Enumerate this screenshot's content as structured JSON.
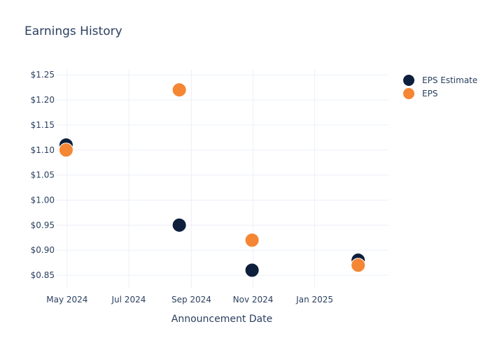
{
  "chart_data": {
    "type": "scatter",
    "title": "Earnings History",
    "xlabel": "Announcement Date",
    "ylabel": "",
    "x_ticks": [
      {
        "date": "2024-05-01",
        "label": "May 2024"
      },
      {
        "date": "2024-07-01",
        "label": "Jul 2024"
      },
      {
        "date": "2024-09-01",
        "label": "Sep 2024"
      },
      {
        "date": "2024-11-01",
        "label": "Nov 2024"
      },
      {
        "date": "2025-01-01",
        "label": "Jan 2025"
      }
    ],
    "xlim": [
      "2024-04-20",
      "2025-03-15"
    ],
    "y_ticks": [
      0.85,
      0.9,
      0.95,
      1.0,
      1.05,
      1.1,
      1.15,
      1.2,
      1.25
    ],
    "y_tick_labels": [
      "$0.85",
      "$0.90",
      "$0.95",
      "$1.00",
      "$1.05",
      "$1.10",
      "$1.15",
      "$1.20",
      "$1.25"
    ],
    "ylim": [
      0.825,
      1.26
    ],
    "grid": true,
    "legend_position": "top-right",
    "series": [
      {
        "name": "EPS Estimate",
        "color": "#0d1f3c",
        "points": [
          {
            "x": "2024-04-30",
            "y": 1.11
          },
          {
            "x": "2024-08-20",
            "y": 0.95
          },
          {
            "x": "2024-10-31",
            "y": 0.86
          },
          {
            "x": "2025-02-13",
            "y": 0.88
          }
        ]
      },
      {
        "name": "EPS",
        "color": "#f58634",
        "points": [
          {
            "x": "2024-04-30",
            "y": 1.1
          },
          {
            "x": "2024-08-20",
            "y": 1.22
          },
          {
            "x": "2024-10-31",
            "y": 0.92
          },
          {
            "x": "2025-02-13",
            "y": 0.87
          }
        ]
      }
    ]
  }
}
